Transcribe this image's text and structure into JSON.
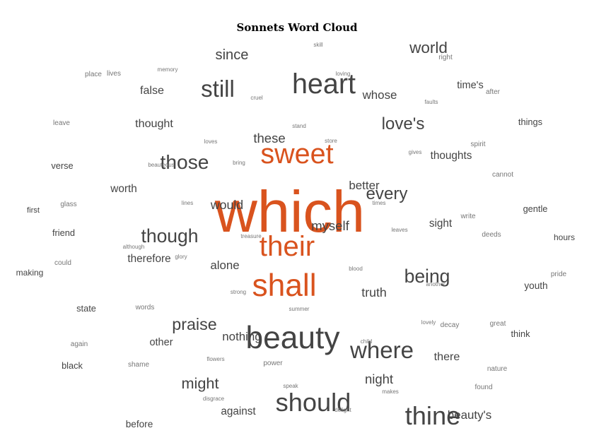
{
  "chart_data": {
    "type": "wordcloud",
    "title": "Sonnets Word Cloud",
    "colors": {
      "dark": "#444444",
      "accent": "#d9531e",
      "light": "#777777"
    },
    "words": [
      {
        "text": "which",
        "weight": 100,
        "accent": true
      },
      {
        "text": "sweet",
        "weight": 46,
        "accent": true
      },
      {
        "text": "their",
        "weight": 47,
        "accent": true
      },
      {
        "text": "shall",
        "weight": 52,
        "accent": true
      },
      {
        "text": "heart",
        "weight": 46
      },
      {
        "text": "beauty",
        "weight": 52
      },
      {
        "text": "should",
        "weight": 42
      },
      {
        "text": "thine",
        "weight": 42
      },
      {
        "text": "where",
        "weight": 38
      },
      {
        "text": "still",
        "weight": 38
      },
      {
        "text": "those",
        "weight": 32
      },
      {
        "text": "though",
        "weight": 30
      },
      {
        "text": "being",
        "weight": 30
      },
      {
        "text": "love's",
        "weight": 27
      },
      {
        "text": "every",
        "weight": 27
      },
      {
        "text": "praise",
        "weight": 26
      },
      {
        "text": "world",
        "weight": 25
      },
      {
        "text": "might",
        "weight": 24
      },
      {
        "text": "since",
        "weight": 22
      },
      {
        "text": "these",
        "weight": 20
      },
      {
        "text": "myself",
        "weight": 20
      },
      {
        "text": "night",
        "weight": 20
      },
      {
        "text": "truth",
        "weight": 19
      },
      {
        "text": "would",
        "weight": 19
      },
      {
        "text": "alone",
        "weight": 18
      },
      {
        "text": "whose",
        "weight": 18
      },
      {
        "text": "better",
        "weight": 18
      },
      {
        "text": "nothing",
        "weight": 18
      },
      {
        "text": "there",
        "weight": 17
      },
      {
        "text": "beauty's",
        "weight": 18
      },
      {
        "text": "false",
        "weight": 17
      },
      {
        "text": "thought",
        "weight": 17
      },
      {
        "text": "thoughts",
        "weight": 16
      },
      {
        "text": "therefore",
        "weight": 16
      },
      {
        "text": "worth",
        "weight": 16
      },
      {
        "text": "against",
        "weight": 16
      },
      {
        "text": "sight",
        "weight": 16
      },
      {
        "text": "time's",
        "weight": 15
      },
      {
        "text": "other",
        "weight": 15
      },
      {
        "text": "before",
        "weight": 14
      },
      {
        "text": "youth",
        "weight": 14
      },
      {
        "text": "verse",
        "weight": 13
      },
      {
        "text": "state",
        "weight": 13
      },
      {
        "text": "think",
        "weight": 13
      },
      {
        "text": "gentle",
        "weight": 13
      },
      {
        "text": "things",
        "weight": 13
      },
      {
        "text": "friend",
        "weight": 13
      },
      {
        "text": "black",
        "weight": 13
      },
      {
        "text": "making",
        "weight": 12
      },
      {
        "text": "hours",
        "weight": 12
      },
      {
        "text": "first",
        "weight": 11
      },
      {
        "text": "pride",
        "weight": 10
      },
      {
        "text": "place",
        "weight": 9
      },
      {
        "text": "lives",
        "weight": 8
      },
      {
        "text": "memory",
        "weight": 7
      },
      {
        "text": "skill",
        "weight": 7
      },
      {
        "text": "right",
        "weight": 8
      },
      {
        "text": "loving",
        "weight": 7
      },
      {
        "text": "cruel",
        "weight": 7
      },
      {
        "text": "after",
        "weight": 8
      },
      {
        "text": "faults",
        "weight": 7
      },
      {
        "text": "leave",
        "weight": 8
      },
      {
        "text": "stand",
        "weight": 7
      },
      {
        "text": "loves",
        "weight": 7
      },
      {
        "text": "store",
        "weight": 7
      },
      {
        "text": "spirit",
        "weight": 8
      },
      {
        "text": "gives",
        "weight": 7
      },
      {
        "text": "beauteous",
        "weight": 7
      },
      {
        "text": "bring",
        "weight": 7
      },
      {
        "text": "cannot",
        "weight": 8
      },
      {
        "text": "glass",
        "weight": 8
      },
      {
        "text": "lines",
        "weight": 7
      },
      {
        "text": "times",
        "weight": 7
      },
      {
        "text": "write",
        "weight": 8
      },
      {
        "text": "although",
        "weight": 7
      },
      {
        "text": "treasure",
        "weight": 7
      },
      {
        "text": "leaves",
        "weight": 7
      },
      {
        "text": "deeds",
        "weight": 8
      },
      {
        "text": "could",
        "weight": 8
      },
      {
        "text": "glory",
        "weight": 7
      },
      {
        "text": "blood",
        "weight": 7
      },
      {
        "text": "another",
        "weight": 7
      },
      {
        "text": "strong",
        "weight": 7
      },
      {
        "text": "words",
        "weight": 8
      },
      {
        "text": "summer",
        "weight": 7
      },
      {
        "text": "lovely",
        "weight": 7
      },
      {
        "text": "decay",
        "weight": 8
      },
      {
        "text": "great",
        "weight": 8
      },
      {
        "text": "again",
        "weight": 8
      },
      {
        "text": "flowers",
        "weight": 7
      },
      {
        "text": "power",
        "weight": 8
      },
      {
        "text": "shame",
        "weight": 8
      },
      {
        "text": "nature",
        "weight": 8
      },
      {
        "text": "speak",
        "weight": 7
      },
      {
        "text": "makes",
        "weight": 7
      },
      {
        "text": "found",
        "weight": 8
      },
      {
        "text": "disgrace",
        "weight": 7
      },
      {
        "text": "delight",
        "weight": 7
      },
      {
        "text": "child",
        "weight": 7
      }
    ]
  }
}
